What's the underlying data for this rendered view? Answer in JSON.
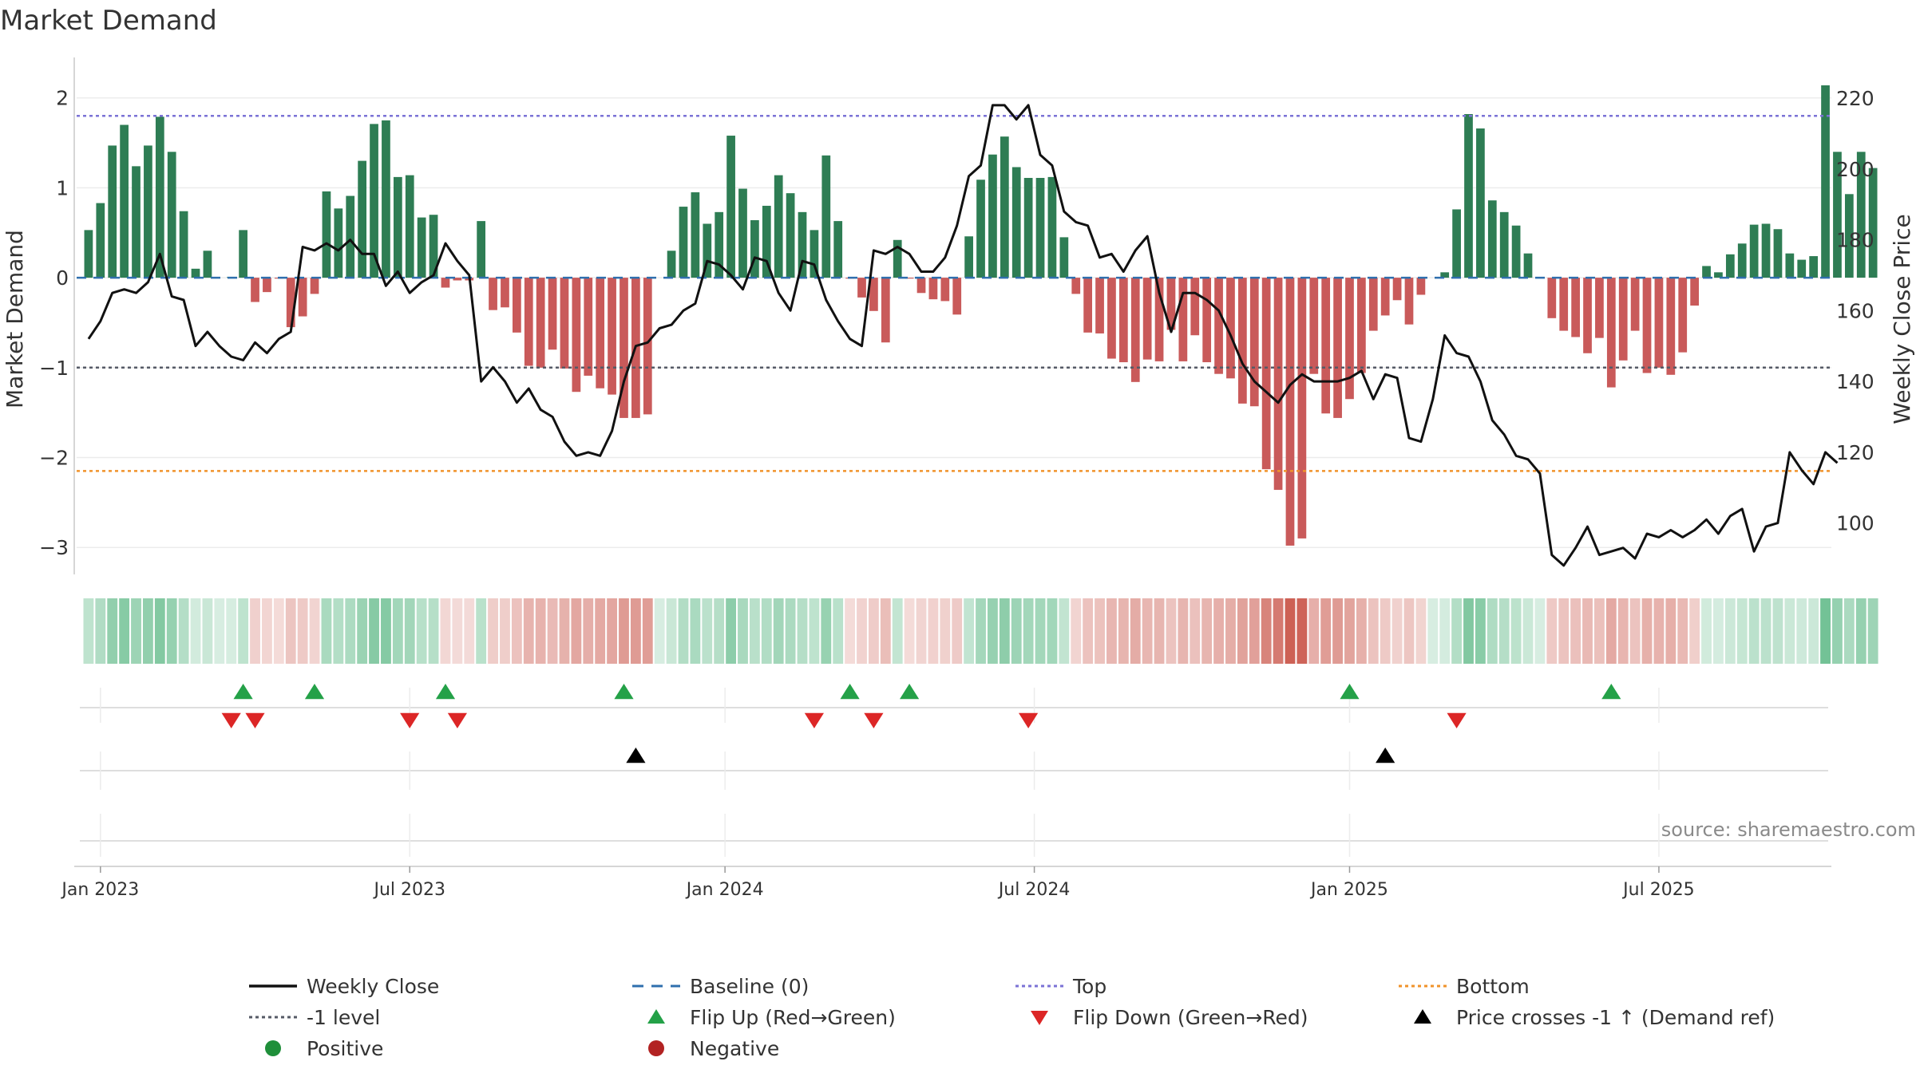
{
  "colors": {
    "positive_bar": "#2e7d54",
    "negative_bar": "#c95a5a",
    "price_line": "#111111",
    "baseline": "#2f6fae",
    "top_line": "#7b73d6",
    "minus1_line": "#555a66",
    "bottom_line": "#f0932b",
    "flip_up": "#24a148",
    "flip_down": "#dc2626",
    "cross": "#000000",
    "positive_dot": "#1f8f3a",
    "negative_dot": "#b22222"
  },
  "chart_data": {
    "type": "bar+line",
    "title": "Market Demand",
    "ylabel_left": "Market Demand",
    "ylabel_right": "Weekly Close Price",
    "ylim_left": [
      -3.3,
      2.45
    ],
    "yticks_left": [
      2,
      1,
      0,
      -1,
      -2,
      -3
    ],
    "ytick_labels_left": [
      "2",
      "1",
      "0",
      "−1",
      "−2",
      "−3"
    ],
    "ylim_right": [
      85.5,
      231.5
    ],
    "yticks_right": [
      220,
      200,
      180,
      160,
      140,
      120,
      100
    ],
    "xlim_weeks": [
      -1,
      146.5
    ],
    "x_ticks": [
      {
        "week": 1,
        "label": "Jan 2023"
      },
      {
        "week": 27,
        "label": "Jul 2023"
      },
      {
        "week": 53.5,
        "label": "Jan 2024"
      },
      {
        "week": 79.5,
        "label": "Jul 2024"
      },
      {
        "week": 106,
        "label": "Jan 2025"
      },
      {
        "week": 132,
        "label": "Jul 2025"
      }
    ],
    "reference_levels": {
      "top": 1.8,
      "minus_one": -1,
      "bottom": -2.15,
      "baseline": 0
    },
    "demand": [
      0.53,
      0.83,
      1.47,
      1.7,
      1.24,
      1.47,
      1.79,
      1.4,
      0.74,
      0.1,
      0.3,
      0,
      0.01,
      0.53,
      -0.27,
      -0.16,
      -0.01,
      -0.55,
      -0.43,
      -0.18,
      0.96,
      0.77,
      0.91,
      1.3,
      1.71,
      1.75,
      1.12,
      1.14,
      0.67,
      0.7,
      -0.11,
      -0.03,
      -0.03,
      0.63,
      -0.36,
      -0.33,
      -0.61,
      -0.98,
      -1.0,
      -0.8,
      -1.01,
      -1.27,
      -1.09,
      -1.23,
      -1.3,
      -1.56,
      -1.56,
      -1.52,
      0,
      0.3,
      0.79,
      0.95,
      0.6,
      0.73,
      1.58,
      0.99,
      0.64,
      0.8,
      1.14,
      0.94,
      0.73,
      0.53,
      1.36,
      0.63,
      -0.01,
      -0.22,
      -0.37,
      -0.72,
      0.42,
      -0.01,
      -0.17,
      -0.24,
      -0.26,
      -0.41,
      0.46,
      1.09,
      1.37,
      1.57,
      1.23,
      1.11,
      1.11,
      1.12,
      0.45,
      -0.18,
      -0.61,
      -0.62,
      -0.9,
      -0.94,
      -1.16,
      -0.91,
      -0.93,
      -0.58,
      -0.93,
      -0.64,
      -0.94,
      -1.07,
      -1.12,
      -1.4,
      -1.43,
      -2.13,
      -2.36,
      -2.98,
      -2.9,
      -1.07,
      -1.51,
      -1.56,
      -1.35,
      -1.06,
      -0.59,
      -0.42,
      -0.25,
      -0.52,
      -0.19,
      0,
      0.06,
      0.76,
      1.82,
      1.66,
      0.86,
      0.73,
      0.58,
      0.27,
      0,
      -0.45,
      -0.59,
      -0.66,
      -0.84,
      -0.67,
      -1.22,
      -0.92,
      -0.59,
      -1.06,
      -1.0,
      -1.08,
      -0.83,
      -0.31,
      0.13,
      0.06,
      0.26,
      0.38,
      0.59,
      0.6,
      0.54,
      0.27,
      0.2,
      0.24,
      2.14,
      1.4,
      0.93,
      1.4,
      1.22
    ],
    "weekly_close": [
      152,
      157,
      165,
      166,
      165,
      168,
      176,
      164,
      163,
      150,
      154,
      150,
      147,
      146,
      151,
      148,
      152,
      154,
      178,
      177,
      179,
      177,
      180,
      176,
      176,
      167,
      171,
      165,
      168,
      170,
      179,
      174,
      170,
      140,
      144,
      140,
      134,
      138,
      132,
      130,
      123,
      119,
      120,
      119,
      126,
      140,
      150,
      151,
      155,
      156,
      160,
      162,
      174,
      173,
      170,
      166,
      175,
      174,
      165,
      160,
      174,
      173,
      163,
      157,
      152,
      150,
      177,
      176,
      178,
      176,
      171,
      171,
      175,
      184,
      198,
      201,
      218,
      218,
      214,
      218,
      204,
      201,
      188,
      185,
      184,
      175,
      176,
      171,
      177,
      181,
      165,
      154,
      165,
      165,
      163,
      160,
      153,
      145,
      140,
      137,
      134,
      139,
      142,
      140,
      140,
      140,
      141,
      143,
      135,
      142,
      141,
      124,
      123,
      135,
      153,
      148,
      147,
      140,
      129,
      125,
      119,
      118,
      114,
      91,
      88,
      93,
      99,
      91,
      92,
      93,
      90,
      97,
      96,
      98,
      96,
      98,
      101,
      97,
      102,
      104,
      92,
      99,
      100,
      120,
      115,
      111,
      120,
      117
    ],
    "bar_color_intensity": "proportional to |demand|",
    "flip_up_weeks": [
      13,
      19,
      30,
      45,
      64,
      69,
      106,
      128
    ],
    "flip_down_weeks": [
      12,
      14,
      27,
      31,
      61,
      66,
      79,
      115
    ],
    "price_cross_weeks": [
      46,
      109
    ],
    "source_text": "source: sharemaestro.com"
  },
  "legend": [
    {
      "label": "Weekly Close",
      "symbol": "line",
      "color": "#111111"
    },
    {
      "label": "Baseline (0)",
      "symbol": "dash",
      "color": "#2f6fae"
    },
    {
      "label": "Top",
      "symbol": "dots",
      "color": "#7b73d6"
    },
    {
      "label": "Bottom",
      "symbol": "dots",
      "color": "#f0932b"
    },
    {
      "label": "-1 level",
      "symbol": "dots",
      "color": "#555a66"
    },
    {
      "label": "Flip Up (Red→Green)",
      "symbol": "triangle-up",
      "color": "#24a148"
    },
    {
      "label": "Flip Down (Green→Red)",
      "symbol": "triangle-down",
      "color": "#dc2626"
    },
    {
      "label": "Price crosses -1 ↑ (Demand ref)",
      "symbol": "triangle-up",
      "color": "#000000"
    },
    {
      "label": "Positive",
      "symbol": "circle",
      "color": "#1f8f3a"
    },
    {
      "label": "Negative",
      "symbol": "circle",
      "color": "#b22222"
    }
  ]
}
